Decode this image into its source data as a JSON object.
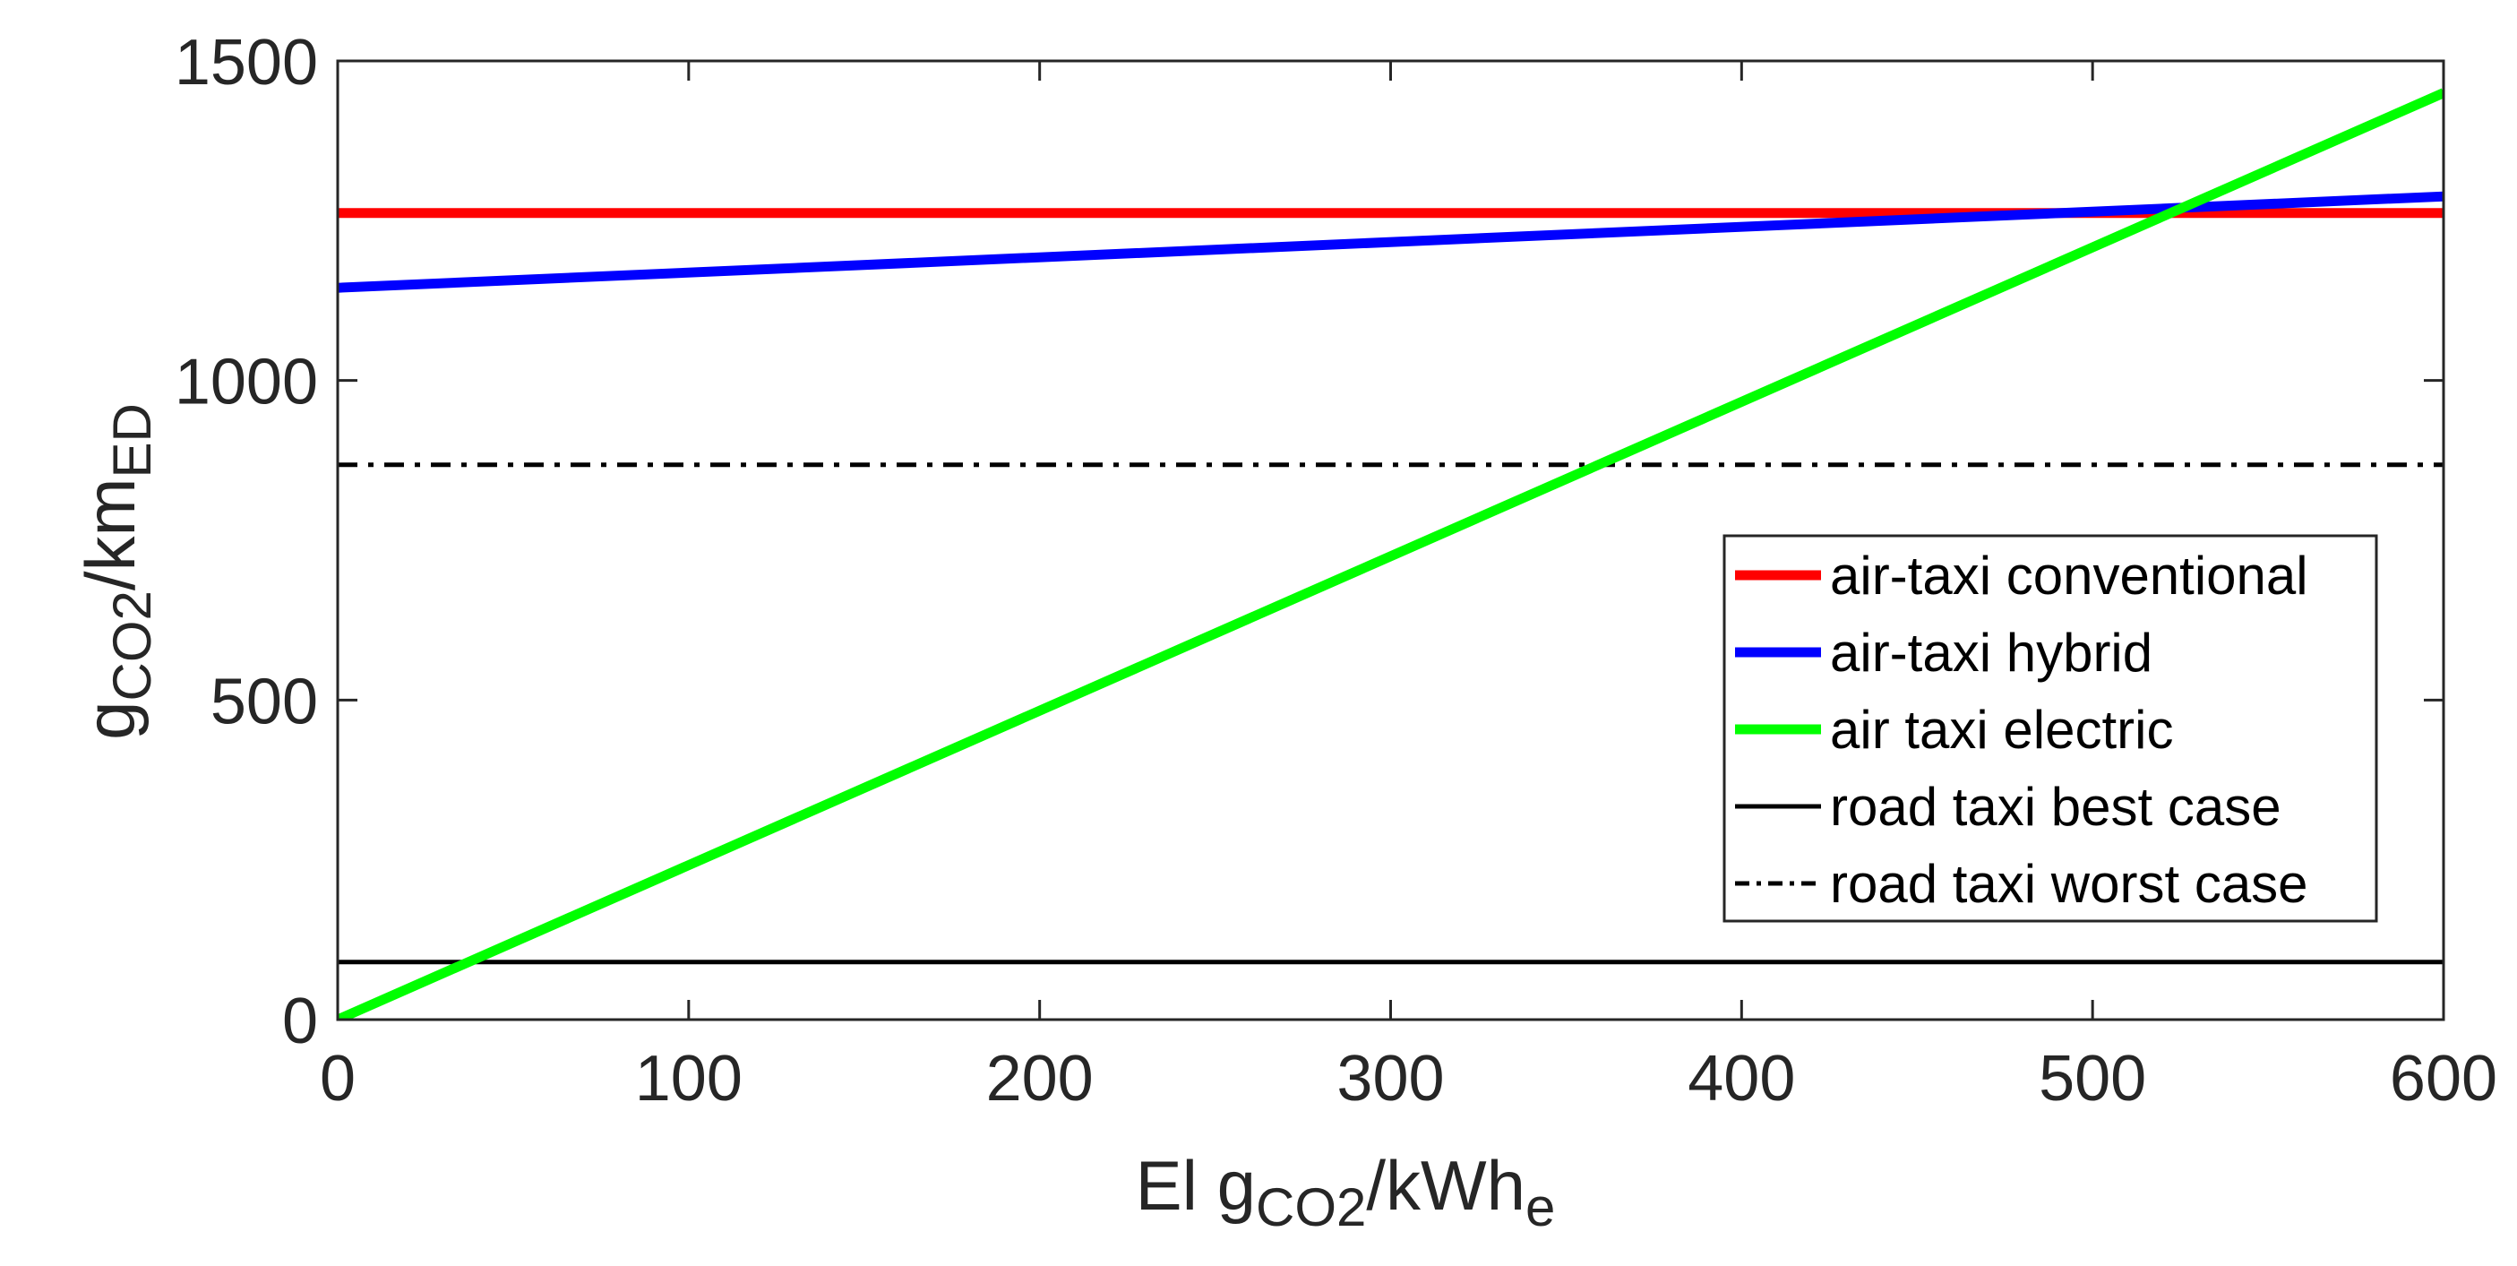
{
  "chart_data": {
    "type": "line",
    "title": "",
    "xlabel": {
      "main": "El g",
      "sub": "CO2",
      "rest": "/kWh",
      "sub2": "e"
    },
    "ylabel": {
      "main": "g",
      "sub": "CO2",
      "rest": "/km",
      "sub2": "ED"
    },
    "xlim": [
      0,
      600
    ],
    "ylim": [
      0,
      1500
    ],
    "xticks": [
      0,
      100,
      200,
      300,
      400,
      500,
      600
    ],
    "yticks": [
      0,
      500,
      1000,
      1500
    ],
    "xtick_labels": [
      "0",
      "100",
      "200",
      "300",
      "400",
      "500",
      "600"
    ],
    "ytick_labels": [
      "0",
      "500",
      "1000",
      "1500"
    ],
    "grid": false,
    "legend_position": "right",
    "series": [
      {
        "name": "air-taxi conventional",
        "color": "#ff0000",
        "style": "solid",
        "width": "thick",
        "x": [
          0,
          600
        ],
        "y": [
          1262,
          1262
        ]
      },
      {
        "name": "air-taxi hybrid",
        "color": "#0000ff",
        "style": "solid",
        "width": "thick",
        "x": [
          0,
          600
        ],
        "y": [
          1145,
          1288
        ]
      },
      {
        "name": "air taxi electric",
        "color": "#00ff00",
        "style": "solid",
        "width": "thick",
        "x": [
          0,
          600
        ],
        "y": [
          0,
          1450
        ]
      },
      {
        "name": "road taxi best case",
        "color": "#000000",
        "style": "solid",
        "width": "thin",
        "x": [
          0,
          600
        ],
        "y": [
          90,
          90
        ]
      },
      {
        "name": "road taxi worst case",
        "color": "#000000",
        "style": "dashdot",
        "width": "thin",
        "x": [
          0,
          600
        ],
        "y": [
          868,
          868
        ]
      }
    ]
  }
}
